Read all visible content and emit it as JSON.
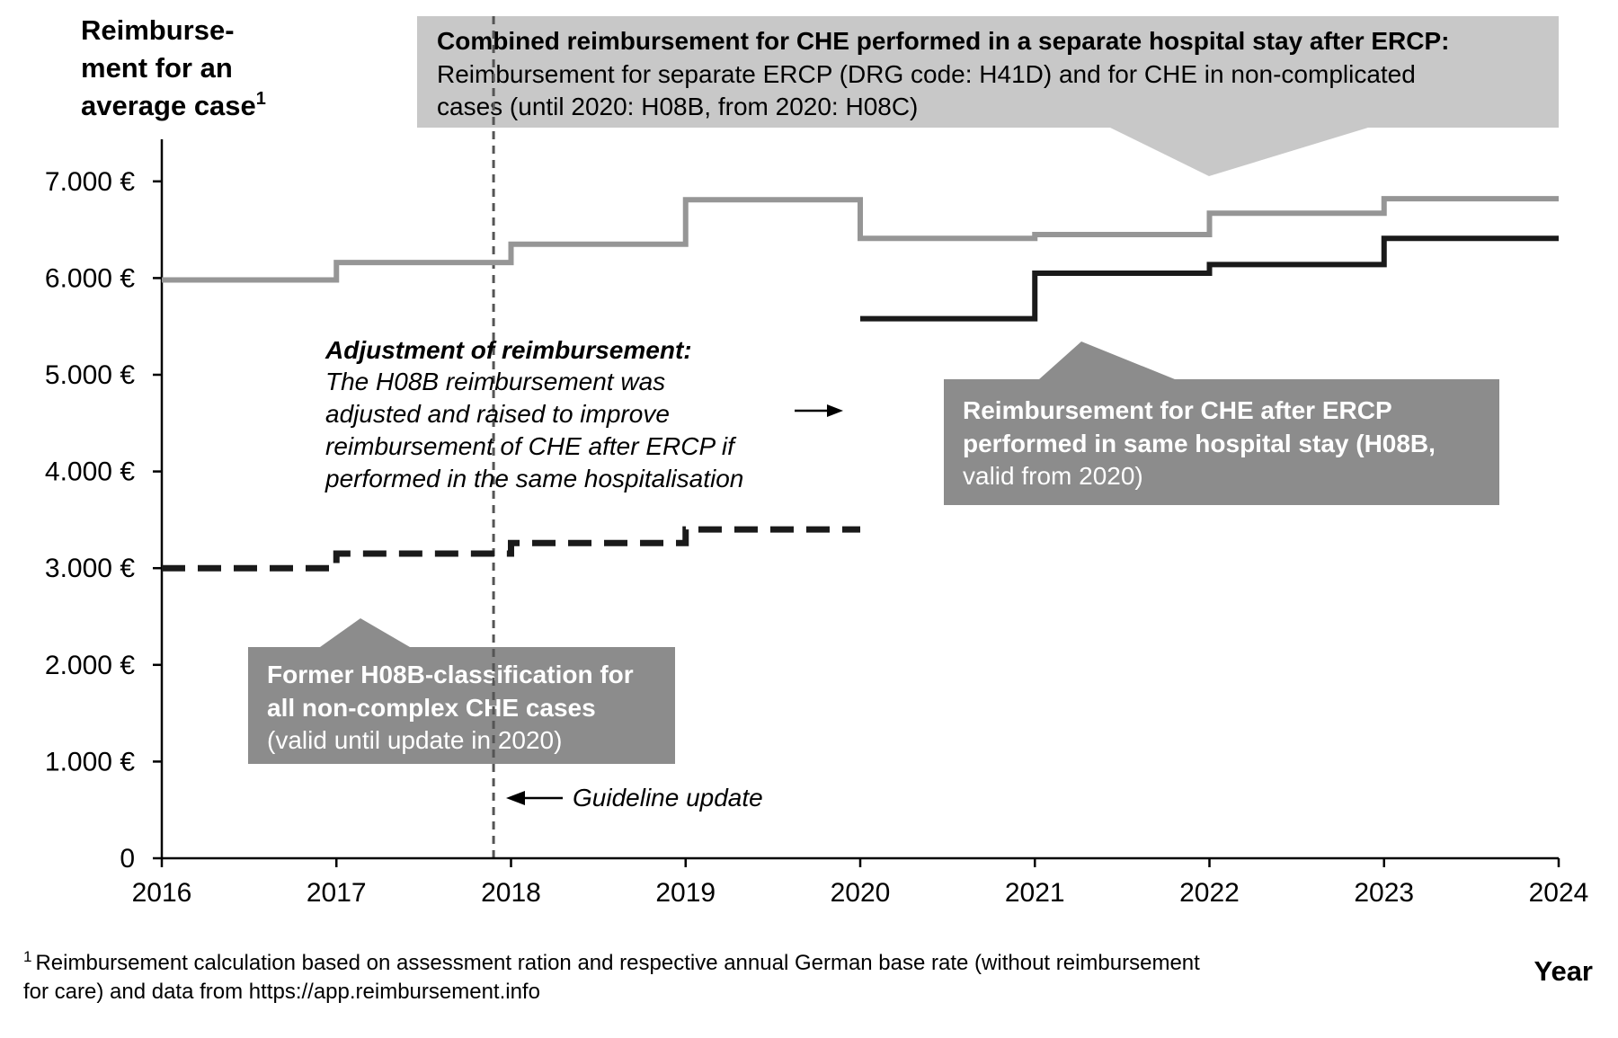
{
  "chart_data": {
    "type": "line",
    "ylabel": [
      "Reimburse-",
      "ment for an",
      "average case"
    ],
    "ylabel_sup": "1",
    "xlabel": "Year",
    "xlim": [
      2016,
      2024
    ],
    "ylim": [
      0,
      7500
    ],
    "x_ticks": [
      "2016",
      "2017",
      "2018",
      "2019",
      "2020",
      "2021",
      "2022",
      "2023",
      "2024"
    ],
    "y_ticks": [
      {
        "value": 0,
        "label": "0"
      },
      {
        "value": 1000,
        "label": "1.000 €"
      },
      {
        "value": 2000,
        "label": "2.000 €"
      },
      {
        "value": 3000,
        "label": "3.000 €"
      },
      {
        "value": 4000,
        "label": "4.000 €"
      },
      {
        "value": 5000,
        "label": "5.000 €"
      },
      {
        "value": 6000,
        "label": "6.000 €"
      },
      {
        "value": 7000,
        "label": "7.000 €"
      }
    ],
    "grid": false,
    "series": [
      {
        "step": "post",
        "style": "solid",
        "color": "#969696",
        "x": [
          2016,
          2017,
          2018,
          2019,
          2020,
          2021,
          2022,
          2023,
          2024
        ],
        "y": [
          5980,
          6160,
          6350,
          6810,
          6410,
          6450,
          6670,
          6820,
          6820
        ]
      },
      {
        "step": "post",
        "style": "dashed",
        "color": "#1a1a1a",
        "x": [
          2016,
          2017,
          2018,
          2019,
          2020
        ],
        "y": [
          3000,
          3150,
          3260,
          3400,
          3400
        ]
      },
      {
        "step": "post",
        "style": "solid",
        "color": "#1a1a1a",
        "x": [
          2020,
          2021,
          2022,
          2023,
          2024
        ],
        "y": [
          5580,
          6050,
          6140,
          6410,
          6410
        ]
      }
    ],
    "guideline_year": 2017.9,
    "callouts": {
      "combined": {
        "bold": "Combined reimbursement for CHE performed in a separate hospital stay after ERCP:",
        "lines": [
          "Reimbursement for separate ERCP (DRG code: H41D) and for CHE in non-complicated",
          "cases (until 2020: H08B, from 2020: H08C)"
        ]
      },
      "same_stay": {
        "bold_lines": [
          "Reimbursement for CHE after ERCP",
          "performed in same hospital stay (H08B,"
        ],
        "lines": [
          "valid from 2020)"
        ]
      },
      "former": {
        "bold_lines": [
          "Former H08B-classification for",
          "all non-complex CHE cases"
        ],
        "lines": [
          "(valid until update in 2020)"
        ]
      }
    },
    "annotations": {
      "adjustment_title": "Adjustment of reimbursement:",
      "adjustment_lines": [
        "The H08B reimbursement was",
        "adjusted and raised to improve",
        "reimbursement of CHE after ERCP if",
        "performed in the same hospitalisation"
      ],
      "guideline": "Guideline update"
    },
    "footnote": {
      "marker": "1",
      "lines": [
        "Reimbursement calculation based on assessment ration and respective annual German base rate (without reimbursement",
        "for care) and data from https://app.reimbursement.info"
      ]
    },
    "colors": {
      "light_box": "#c8c8c8",
      "dark_box": "#8c8c8c",
      "light_line": "#969696",
      "dark_line": "#1a1a1a"
    }
  }
}
